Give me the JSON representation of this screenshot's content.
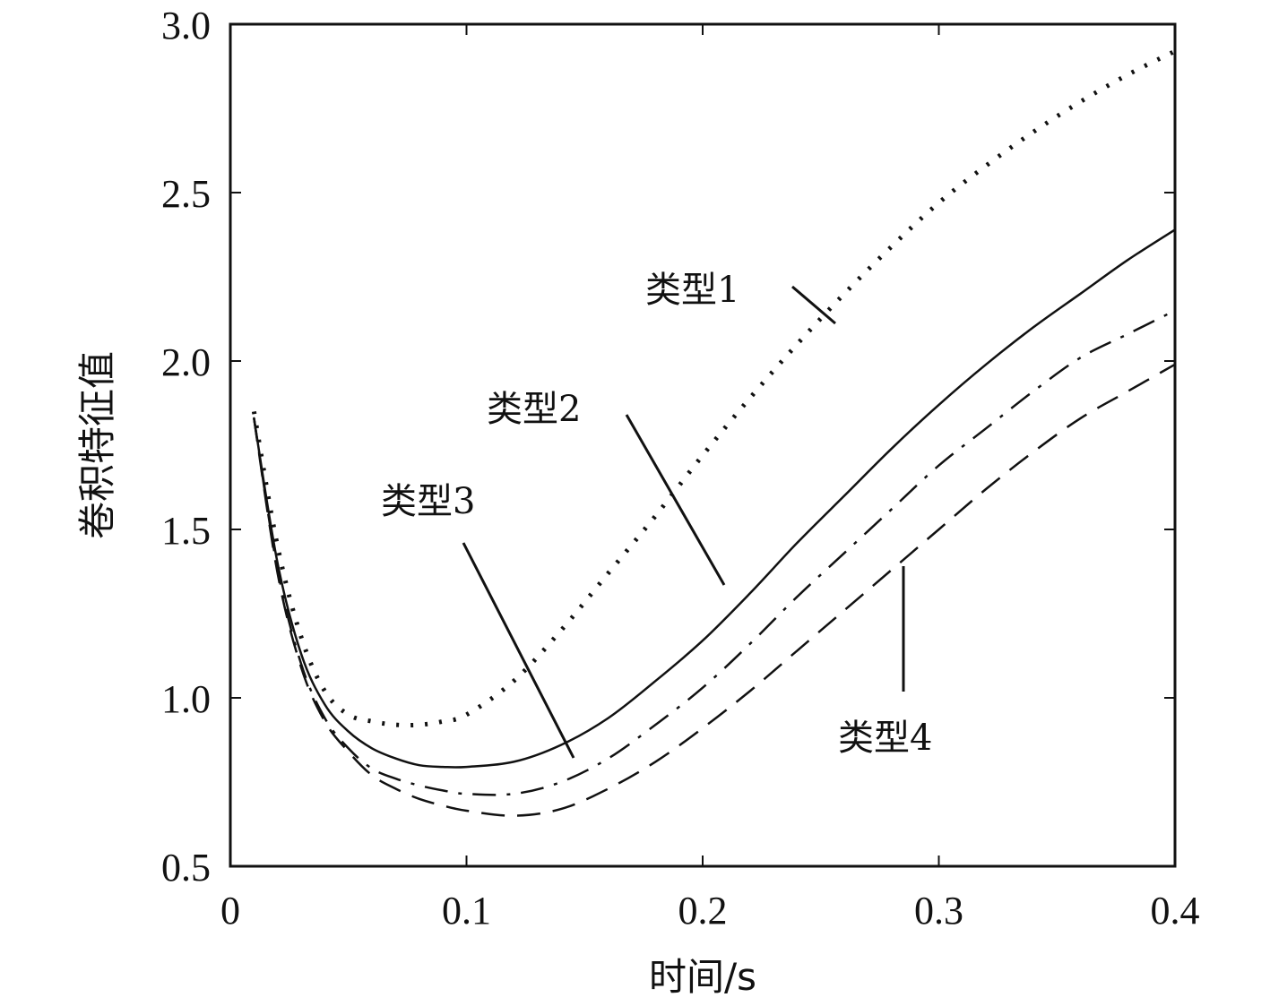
{
  "chart_data": {
    "type": "line",
    "xlabel": "时间/s",
    "ylabel": "卷积特征值",
    "xlim": [
      0,
      0.4
    ],
    "ylim": [
      0.5,
      3.0
    ],
    "x_ticks": [
      "0",
      "0.1",
      "0.2",
      "0.3",
      "0.4"
    ],
    "y_ticks": [
      "0.5",
      "1.0",
      "1.5",
      "2.0",
      "2.5",
      "3.0"
    ],
    "grid": false,
    "legend": "none",
    "series": [
      {
        "name": "类型1",
        "line_style": "dotted",
        "x": [
          0.01,
          0.02,
          0.03,
          0.04,
          0.05,
          0.06,
          0.07,
          0.08,
          0.09,
          0.1,
          0.12,
          0.14,
          0.16,
          0.18,
          0.2,
          0.22,
          0.24,
          0.26,
          0.28,
          0.3,
          0.32,
          0.34,
          0.36,
          0.38,
          0.4
        ],
        "y": [
          1.85,
          1.45,
          1.18,
          1.02,
          0.95,
          0.93,
          0.92,
          0.92,
          0.93,
          0.95,
          1.05,
          1.2,
          1.37,
          1.54,
          1.72,
          1.89,
          2.05,
          2.2,
          2.34,
          2.47,
          2.58,
          2.68,
          2.77,
          2.85,
          2.92
        ]
      },
      {
        "name": "类型2",
        "line_style": "solid",
        "x": [
          0.01,
          0.02,
          0.03,
          0.04,
          0.05,
          0.06,
          0.07,
          0.08,
          0.09,
          0.1,
          0.12,
          0.14,
          0.16,
          0.18,
          0.2,
          0.22,
          0.24,
          0.26,
          0.28,
          0.3,
          0.32,
          0.34,
          0.36,
          0.38,
          0.4
        ],
        "y": [
          1.83,
          1.4,
          1.13,
          0.98,
          0.9,
          0.85,
          0.82,
          0.8,
          0.795,
          0.795,
          0.81,
          0.86,
          0.94,
          1.05,
          1.17,
          1.31,
          1.46,
          1.6,
          1.74,
          1.87,
          1.99,
          2.1,
          2.2,
          2.3,
          2.39
        ]
      },
      {
        "name": "类型3",
        "line_style": "dash-dot",
        "x": [
          0.01,
          0.02,
          0.03,
          0.04,
          0.05,
          0.06,
          0.07,
          0.08,
          0.09,
          0.1,
          0.12,
          0.14,
          0.16,
          0.18,
          0.2,
          0.22,
          0.24,
          0.26,
          0.28,
          0.3,
          0.32,
          0.34,
          0.36,
          0.38,
          0.4
        ],
        "y": [
          1.83,
          1.38,
          1.1,
          0.94,
          0.85,
          0.79,
          0.76,
          0.74,
          0.725,
          0.715,
          0.715,
          0.75,
          0.82,
          0.92,
          1.03,
          1.16,
          1.3,
          1.43,
          1.56,
          1.69,
          1.8,
          1.91,
          2.01,
          2.08,
          2.15
        ]
      },
      {
        "name": "类型4",
        "line_style": "dashed",
        "x": [
          0.01,
          0.02,
          0.03,
          0.04,
          0.05,
          0.06,
          0.07,
          0.08,
          0.09,
          0.1,
          0.12,
          0.14,
          0.16,
          0.18,
          0.2,
          0.22,
          0.24,
          0.26,
          0.28,
          0.3,
          0.32,
          0.34,
          0.36,
          0.38,
          0.4
        ],
        "y": [
          1.83,
          1.37,
          1.09,
          0.93,
          0.84,
          0.77,
          0.73,
          0.7,
          0.68,
          0.665,
          0.65,
          0.67,
          0.73,
          0.81,
          0.91,
          1.02,
          1.14,
          1.26,
          1.38,
          1.5,
          1.62,
          1.73,
          1.83,
          1.91,
          1.99
        ]
      }
    ],
    "annotations": [
      {
        "text": "类型1",
        "series": "类型1"
      },
      {
        "text": "类型2",
        "series": "类型2"
      },
      {
        "text": "类型3",
        "series": "类型3"
      },
      {
        "text": "类型4",
        "series": "类型4"
      }
    ]
  }
}
